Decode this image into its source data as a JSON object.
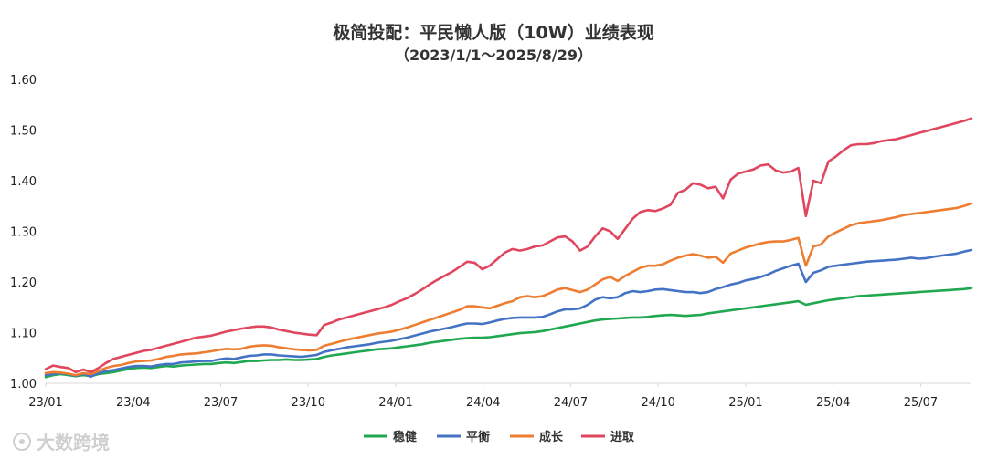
{
  "chart_data": {
    "type": "line",
    "title": "极简投配：平民懒人版（10W）业绩表现",
    "subtitle": "（2023/1/1～2025/8/29）",
    "xlabel": "",
    "ylabel": "",
    "ylim": [
      1.0,
      1.6
    ],
    "yticks": [
      "1.00",
      "1.10",
      "1.20",
      "1.30",
      "1.40",
      "1.50",
      "1.60"
    ],
    "xticks": [
      "23/01",
      "23/04",
      "23/07",
      "23/10",
      "24/01",
      "24/04",
      "24/07",
      "24/10",
      "25/01",
      "25/04",
      "25/07"
    ],
    "grid": false,
    "legend_position": "bottom",
    "series": [
      {
        "name": "稳健",
        "color": "#1fa84f",
        "values": [
          1.012,
          1.016,
          1.018,
          1.016,
          1.014,
          1.016,
          1.014,
          1.018,
          1.02,
          1.022,
          1.025,
          1.028,
          1.03,
          1.031,
          1.03,
          1.032,
          1.034,
          1.033,
          1.035,
          1.036,
          1.037,
          1.038,
          1.038,
          1.04,
          1.041,
          1.04,
          1.042,
          1.044,
          1.044,
          1.045,
          1.046,
          1.046,
          1.047,
          1.046,
          1.046,
          1.047,
          1.048,
          1.052,
          1.055,
          1.057,
          1.059,
          1.061,
          1.063,
          1.065,
          1.067,
          1.068,
          1.069,
          1.071,
          1.073,
          1.075,
          1.077,
          1.08,
          1.082,
          1.084,
          1.086,
          1.088,
          1.089,
          1.09,
          1.09,
          1.091,
          1.093,
          1.095,
          1.097,
          1.099,
          1.1,
          1.101,
          1.103,
          1.106,
          1.109,
          1.112,
          1.115,
          1.118,
          1.121,
          1.124,
          1.126,
          1.127,
          1.128,
          1.129,
          1.13,
          1.13,
          1.131,
          1.133,
          1.134,
          1.135,
          1.134,
          1.133,
          1.134,
          1.135,
          1.138,
          1.14,
          1.142,
          1.144,
          1.146,
          1.148,
          1.15,
          1.152,
          1.154,
          1.156,
          1.158,
          1.16,
          1.162,
          1.155,
          1.158,
          1.161,
          1.164,
          1.166,
          1.168,
          1.17,
          1.172,
          1.173,
          1.174,
          1.175,
          1.176,
          1.177,
          1.178,
          1.179,
          1.18,
          1.181,
          1.182,
          1.183,
          1.184,
          1.185,
          1.186,
          1.188
        ]
      },
      {
        "name": "平衡",
        "color": "#4472c4",
        "values": [
          1.016,
          1.018,
          1.02,
          1.018,
          1.015,
          1.019,
          1.013,
          1.02,
          1.024,
          1.026,
          1.029,
          1.032,
          1.034,
          1.034,
          1.033,
          1.036,
          1.038,
          1.038,
          1.041,
          1.042,
          1.043,
          1.044,
          1.044,
          1.047,
          1.049,
          1.048,
          1.051,
          1.054,
          1.055,
          1.057,
          1.057,
          1.055,
          1.054,
          1.053,
          1.052,
          1.054,
          1.056,
          1.062,
          1.065,
          1.068,
          1.071,
          1.073,
          1.075,
          1.077,
          1.08,
          1.082,
          1.084,
          1.087,
          1.09,
          1.094,
          1.098,
          1.102,
          1.105,
          1.108,
          1.111,
          1.115,
          1.118,
          1.118,
          1.117,
          1.12,
          1.124,
          1.127,
          1.129,
          1.13,
          1.13,
          1.13,
          1.131,
          1.136,
          1.142,
          1.146,
          1.146,
          1.148,
          1.155,
          1.165,
          1.17,
          1.168,
          1.17,
          1.178,
          1.182,
          1.18,
          1.182,
          1.185,
          1.186,
          1.184,
          1.182,
          1.18,
          1.18,
          1.178,
          1.18,
          1.186,
          1.19,
          1.195,
          1.198,
          1.203,
          1.206,
          1.21,
          1.215,
          1.222,
          1.227,
          1.232,
          1.236,
          1.2,
          1.218,
          1.223,
          1.23,
          1.232,
          1.234,
          1.236,
          1.238,
          1.24,
          1.241,
          1.242,
          1.243,
          1.244,
          1.246,
          1.248,
          1.246,
          1.247,
          1.25,
          1.252,
          1.254,
          1.256,
          1.26,
          1.263
        ]
      },
      {
        "name": "成长",
        "color": "#ed7d31",
        "values": [
          1.02,
          1.022,
          1.021,
          1.019,
          1.016,
          1.02,
          1.018,
          1.024,
          1.03,
          1.034,
          1.036,
          1.04,
          1.043,
          1.044,
          1.045,
          1.048,
          1.052,
          1.054,
          1.057,
          1.058,
          1.059,
          1.061,
          1.063,
          1.066,
          1.068,
          1.067,
          1.068,
          1.072,
          1.074,
          1.075,
          1.074,
          1.071,
          1.069,
          1.067,
          1.066,
          1.065,
          1.066,
          1.074,
          1.078,
          1.082,
          1.086,
          1.089,
          1.092,
          1.095,
          1.098,
          1.1,
          1.102,
          1.106,
          1.11,
          1.115,
          1.12,
          1.125,
          1.13,
          1.135,
          1.14,
          1.145,
          1.152,
          1.152,
          1.15,
          1.148,
          1.153,
          1.158,
          1.162,
          1.17,
          1.172,
          1.17,
          1.172,
          1.178,
          1.185,
          1.188,
          1.184,
          1.18,
          1.185,
          1.195,
          1.205,
          1.21,
          1.202,
          1.212,
          1.22,
          1.228,
          1.232,
          1.232,
          1.235,
          1.242,
          1.248,
          1.252,
          1.255,
          1.252,
          1.248,
          1.25,
          1.238,
          1.256,
          1.262,
          1.268,
          1.272,
          1.276,
          1.279,
          1.28,
          1.28,
          1.283,
          1.287,
          1.232,
          1.27,
          1.274,
          1.29,
          1.298,
          1.305,
          1.312,
          1.316,
          1.318,
          1.32,
          1.322,
          1.325,
          1.328,
          1.332,
          1.334,
          1.336,
          1.338,
          1.34,
          1.342,
          1.344,
          1.346,
          1.35,
          1.355
        ]
      },
      {
        "name": "进取",
        "color": "#e0475e",
        "values": [
          1.028,
          1.035,
          1.032,
          1.03,
          1.022,
          1.027,
          1.022,
          1.03,
          1.04,
          1.048,
          1.052,
          1.056,
          1.06,
          1.064,
          1.066,
          1.07,
          1.074,
          1.078,
          1.082,
          1.086,
          1.09,
          1.092,
          1.094,
          1.098,
          1.102,
          1.105,
          1.108,
          1.11,
          1.112,
          1.112,
          1.11,
          1.106,
          1.103,
          1.1,
          1.098,
          1.096,
          1.095,
          1.115,
          1.12,
          1.126,
          1.13,
          1.134,
          1.138,
          1.142,
          1.146,
          1.15,
          1.155,
          1.162,
          1.168,
          1.176,
          1.185,
          1.195,
          1.204,
          1.212,
          1.22,
          1.23,
          1.24,
          1.238,
          1.225,
          1.232,
          1.245,
          1.258,
          1.265,
          1.262,
          1.265,
          1.27,
          1.272,
          1.28,
          1.288,
          1.29,
          1.28,
          1.262,
          1.27,
          1.29,
          1.306,
          1.3,
          1.285,
          1.305,
          1.325,
          1.338,
          1.342,
          1.34,
          1.345,
          1.352,
          1.376,
          1.382,
          1.395,
          1.392,
          1.385,
          1.388,
          1.365,
          1.402,
          1.414,
          1.418,
          1.422,
          1.43,
          1.432,
          1.42,
          1.416,
          1.418,
          1.425,
          1.33,
          1.4,
          1.395,
          1.438,
          1.448,
          1.46,
          1.47,
          1.472,
          1.472,
          1.474,
          1.478,
          1.48,
          1.482,
          1.486,
          1.49,
          1.494,
          1.498,
          1.502,
          1.506,
          1.51,
          1.514,
          1.518,
          1.523
        ]
      }
    ]
  },
  "watermark": {
    "text": "大数跨境"
  }
}
